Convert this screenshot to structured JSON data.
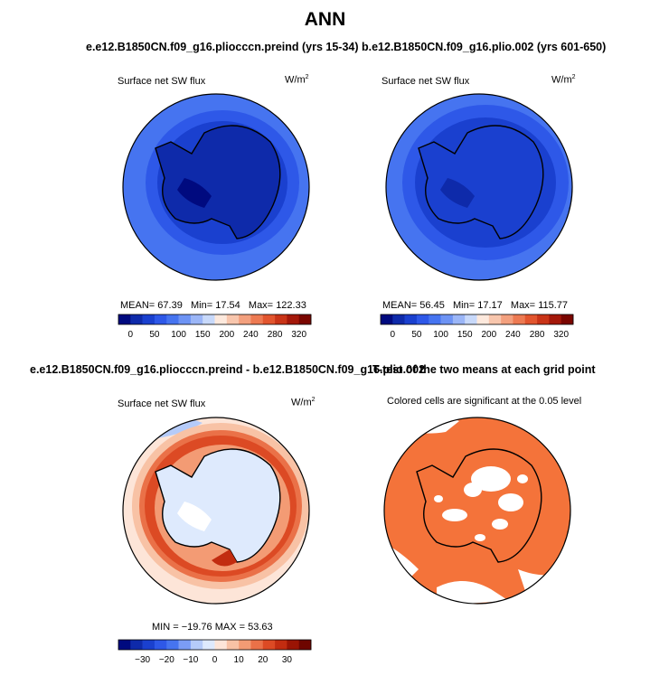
{
  "title": "ANN",
  "colors": {
    "blue_scale": [
      "#000a7f",
      "#0e2aaa",
      "#1a40cf",
      "#2e58e8",
      "#4674f0",
      "#6d93f4",
      "#9bb6f7",
      "#c8d9fa",
      "#fde9dd",
      "#f8c6ad",
      "#f3a07e",
      "#ed7a52",
      "#e2552e",
      "#c93417",
      "#a4180a",
      "#7a0600"
    ],
    "diff_scale": [
      "#000a7f",
      "#0e2aaa",
      "#1a40cf",
      "#2e58e8",
      "#4674f0",
      "#7b9cf5",
      "#b5cbf9",
      "#deeafd",
      "#fde5d8",
      "#f8c2a5",
      "#f39b74",
      "#ea7148",
      "#dc4a24",
      "#c22c10",
      "#9a1404",
      "#6e0500"
    ],
    "significance": "#f4733a"
  },
  "panels": [
    {
      "id": "ctrl",
      "title": "e.e12.B1850CN.f09_g16.pliocccn.preind (yrs 15-34)",
      "left_label": "Surface net SW flux",
      "units_base": "W/m",
      "units_sup": "2",
      "stats": {
        "mean_label": "MEAN=",
        "mean": "67.39",
        "min_label": "Min=",
        "min": "17.54",
        "max_label": "Max=",
        "max": "122.33"
      },
      "colorbar_ticks": [
        "0",
        "50",
        "100",
        "150",
        "200",
        "240",
        "280",
        "320"
      ]
    },
    {
      "id": "exp",
      "title": "b.e12.B1850CN.f09_g16.plio.002 (yrs 601-650)",
      "left_label": "Surface net SW flux",
      "units_base": "W/m",
      "units_sup": "2",
      "stats": {
        "mean_label": "MEAN=",
        "mean": "56.45",
        "min_label": "Min=",
        "min": "17.17",
        "max_label": "Max=",
        "max": "115.77"
      },
      "colorbar_ticks": [
        "0",
        "50",
        "100",
        "150",
        "200",
        "240",
        "280",
        "320"
      ]
    },
    {
      "id": "diff",
      "title": "e.e12.B1850CN.f09_g16.pliocccn.preind - b.e12.B1850CN.f09_g16.plio.002",
      "left_label": "Surface net SW flux",
      "units_base": "W/m",
      "units_sup": "2",
      "stats_line": "MIN = −19.76  MAX = 53.63",
      "colorbar_ticks": [
        "−30",
        "−20",
        "−10",
        "0",
        "10",
        "20",
        "30"
      ]
    },
    {
      "id": "ttest",
      "title": "T-test of the two means at each grid point",
      "subtitle": "Colored cells are significant at the 0.05 level"
    }
  ]
}
